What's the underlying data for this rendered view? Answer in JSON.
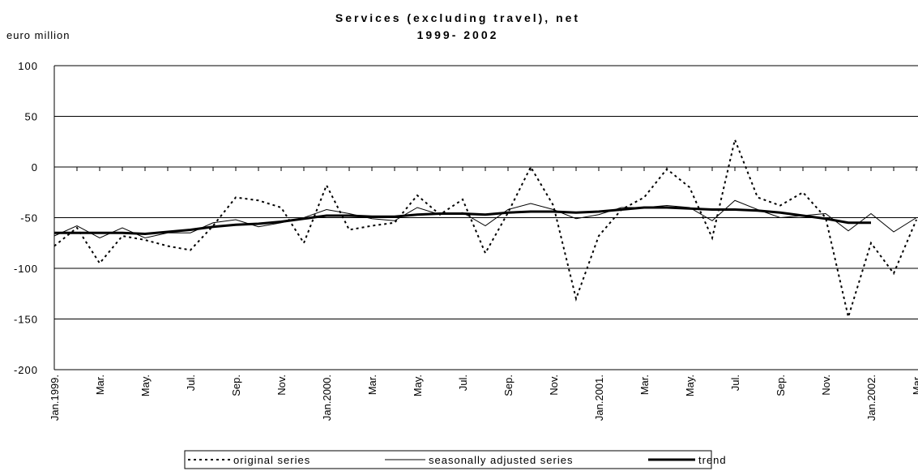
{
  "chart_data": {
    "type": "line",
    "title": "Services (excluding travel), net",
    "subtitle": "1999- 2002",
    "y_label": "euro million",
    "categories": [
      "Jan.1999.",
      null,
      "Mar.",
      null,
      "May.",
      null,
      "Jul.",
      null,
      "Sep.",
      null,
      "Nov.",
      null,
      "Jan.2000.",
      null,
      "Mar.",
      null,
      "May.",
      null,
      "Jul.",
      null,
      "Sep.",
      null,
      "Nov.",
      null,
      "Jan.2001.",
      null,
      "Mar.",
      null,
      "May.",
      null,
      "Jul.",
      null,
      "Sep.",
      null,
      "Nov.",
      null,
      "Jan.2002.",
      null,
      "Mar."
    ],
    "ylim": [
      -200,
      100
    ],
    "yticks": [
      100,
      50,
      0,
      -50,
      -100,
      -150,
      -200
    ],
    "grid": true,
    "legend": "bottom",
    "series": [
      {
        "name": "original series",
        "color": "#000000",
        "style": "dotted",
        "values": [
          -78,
          -60,
          -95,
          -68,
          -72,
          -78,
          -82,
          -58,
          -30,
          -33,
          -40,
          -75,
          -18,
          -62,
          -58,
          -55,
          -28,
          -47,
          -32,
          -85,
          -45,
          0,
          -38,
          -130,
          -68,
          -42,
          -30,
          -2,
          -20,
          -70,
          27,
          -30,
          -38,
          -25,
          -50,
          -148,
          -75,
          -105,
          -52
        ]
      },
      {
        "name": "seasonally adjusted series",
        "color": "#000000",
        "style": "thin",
        "values": [
          -68,
          -58,
          -70,
          -60,
          -70,
          -65,
          -65,
          -55,
          -52,
          -59,
          -55,
          -50,
          -42,
          -46,
          -51,
          -53,
          -40,
          -47,
          -45,
          -58,
          -42,
          -36,
          -42,
          -51,
          -47,
          -40,
          -40,
          -38,
          -40,
          -53,
          -33,
          -42,
          -50,
          -48,
          -46,
          -63,
          -46,
          -64,
          -50
        ]
      },
      {
        "name": "trend",
        "color": "#000000",
        "style": "thick",
        "values": [
          -65,
          -65,
          -65,
          -65,
          -66,
          -64,
          -62,
          -59,
          -57,
          -56,
          -54,
          -51,
          -48,
          -48,
          -49,
          -49,
          -47,
          -46,
          -46,
          -47,
          -45,
          -44,
          -44,
          -45,
          -44,
          -42,
          -40,
          -40,
          -41,
          -42,
          -42,
          -43,
          -45,
          -48,
          -51,
          -55,
          -55,
          null,
          null
        ]
      }
    ]
  }
}
